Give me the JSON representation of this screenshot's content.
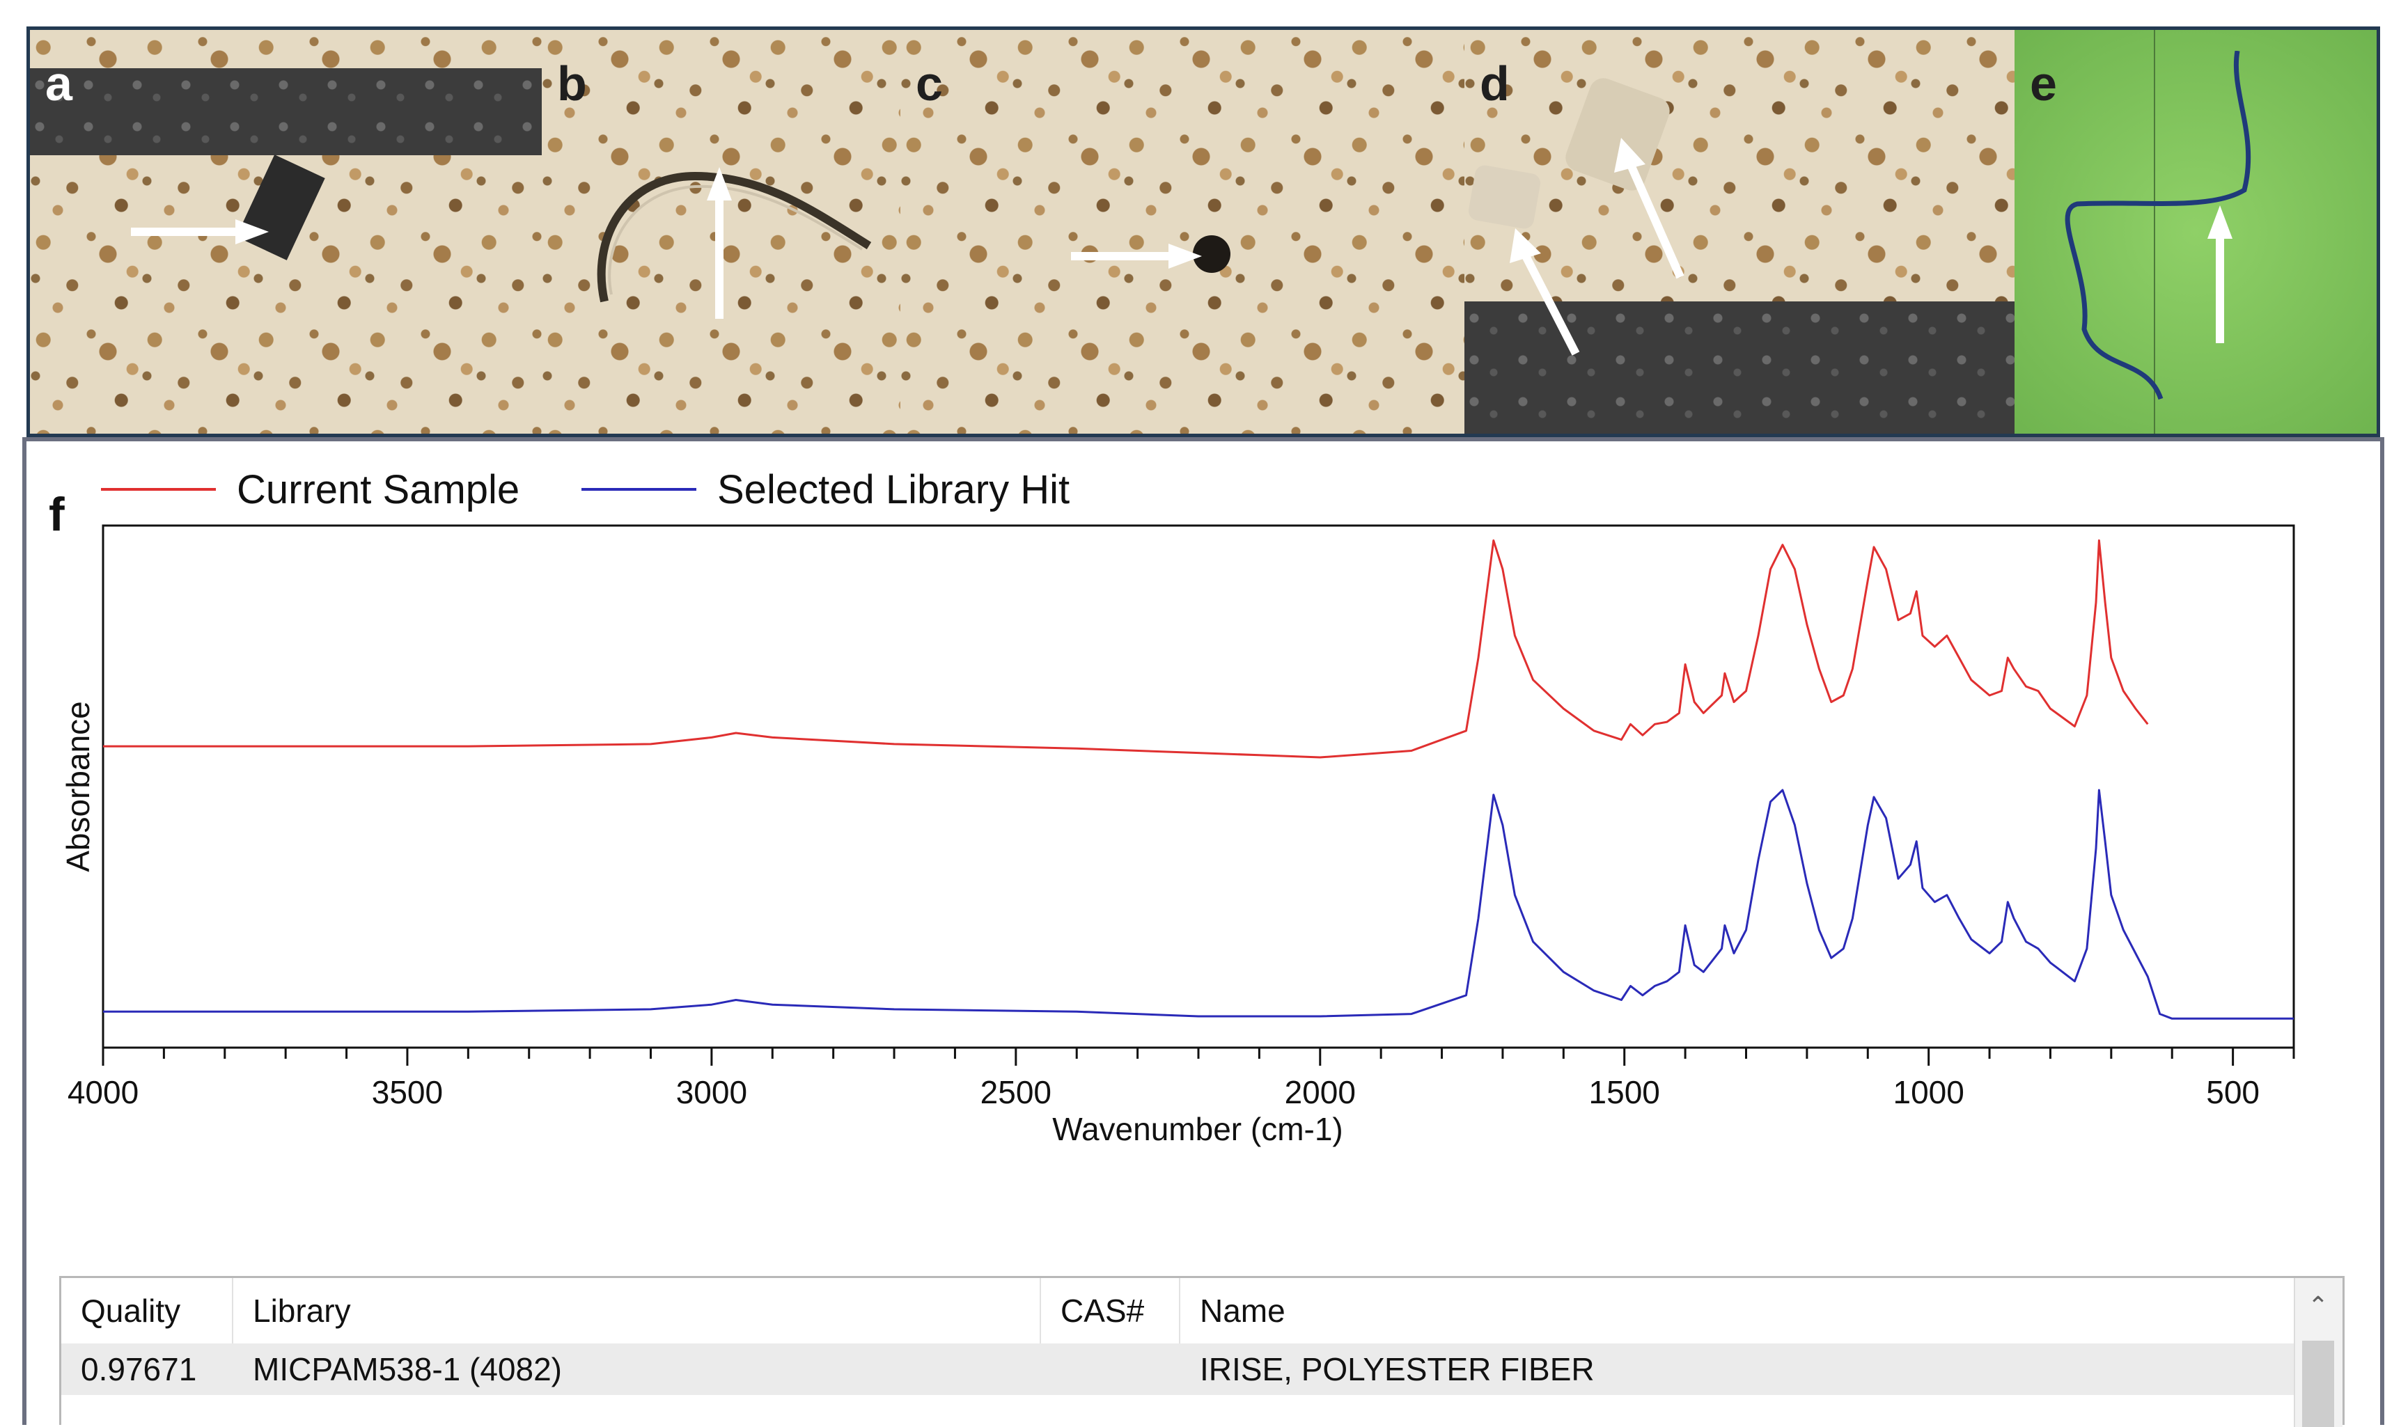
{
  "panels": {
    "a": "a",
    "b": "b",
    "c": "c",
    "d": "d",
    "e": "e",
    "f": "f"
  },
  "legend": {
    "current_sample": "Current Sample",
    "library_hit": "Selected Library Hit"
  },
  "colors": {
    "current_sample": "#e03030",
    "library_hit": "#2a2ab8",
    "frame": "#233a52"
  },
  "chart_data": {
    "type": "line",
    "xlabel": "Wavenumber (cm-1)",
    "ylabel": "Absorbance",
    "xlim": [
      4000,
      400
    ],
    "x_reversed": true,
    "xticks": [
      "4000",
      "3500",
      "3000",
      "2500",
      "2000",
      "1500",
      "1000",
      "500"
    ],
    "grid": false,
    "series": [
      {
        "name": "Current Sample",
        "x": [
          4000,
          3700,
          3400,
          3100,
          3000,
          2960,
          2900,
          2700,
          2400,
          2200,
          2100,
          2000,
          1850,
          1760,
          1740,
          1715,
          1700,
          1680,
          1650,
          1600,
          1550,
          1505,
          1490,
          1470,
          1450,
          1430,
          1410,
          1400,
          1385,
          1370,
          1340,
          1335,
          1320,
          1300,
          1280,
          1260,
          1240,
          1220,
          1200,
          1180,
          1160,
          1140,
          1125,
          1100,
          1090,
          1070,
          1050,
          1030,
          1020,
          1010,
          990,
          970,
          950,
          930,
          900,
          880,
          870,
          860,
          840,
          820,
          800,
          790,
          760,
          740,
          725,
          720,
          710,
          700,
          680,
          660,
          640
        ],
        "y": [
          0.05,
          0.05,
          0.05,
          0.06,
          0.09,
          0.11,
          0.09,
          0.06,
          0.04,
          0.02,
          0.01,
          0.0,
          0.03,
          0.12,
          0.45,
          0.98,
          0.85,
          0.55,
          0.35,
          0.22,
          0.12,
          0.08,
          0.15,
          0.1,
          0.15,
          0.16,
          0.2,
          0.42,
          0.25,
          0.2,
          0.28,
          0.38,
          0.25,
          0.3,
          0.55,
          0.85,
          0.96,
          0.85,
          0.6,
          0.4,
          0.25,
          0.28,
          0.4,
          0.8,
          0.95,
          0.85,
          0.62,
          0.65,
          0.75,
          0.55,
          0.5,
          0.55,
          0.45,
          0.35,
          0.28,
          0.3,
          0.45,
          0.4,
          0.32,
          0.3,
          0.22,
          0.2,
          0.14,
          0.28,
          0.7,
          0.98,
          0.7,
          0.45,
          0.3,
          0.22,
          0.15
        ]
      },
      {
        "name": "Selected Library Hit",
        "x": [
          4000,
          3700,
          3400,
          3100,
          3000,
          2960,
          2900,
          2700,
          2400,
          2200,
          2100,
          2000,
          1850,
          1760,
          1740,
          1715,
          1700,
          1680,
          1650,
          1600,
          1550,
          1505,
          1490,
          1470,
          1450,
          1430,
          1410,
          1400,
          1385,
          1370,
          1340,
          1335,
          1320,
          1300,
          1280,
          1260,
          1240,
          1220,
          1200,
          1180,
          1160,
          1140,
          1125,
          1100,
          1090,
          1070,
          1050,
          1030,
          1020,
          1010,
          990,
          970,
          950,
          930,
          900,
          880,
          870,
          860,
          840,
          820,
          800,
          790,
          760,
          740,
          725,
          720,
          710,
          700,
          680,
          660,
          640,
          620,
          600,
          400
        ],
        "y": [
          0.05,
          0.05,
          0.05,
          0.06,
          0.08,
          0.1,
          0.08,
          0.06,
          0.05,
          0.03,
          0.03,
          0.03,
          0.04,
          0.12,
          0.45,
          0.98,
          0.85,
          0.55,
          0.35,
          0.22,
          0.14,
          0.1,
          0.16,
          0.12,
          0.16,
          0.18,
          0.22,
          0.42,
          0.25,
          0.22,
          0.32,
          0.42,
          0.3,
          0.4,
          0.7,
          0.95,
          1.0,
          0.85,
          0.6,
          0.4,
          0.28,
          0.32,
          0.45,
          0.85,
          0.97,
          0.88,
          0.62,
          0.68,
          0.78,
          0.58,
          0.52,
          0.55,
          0.45,
          0.36,
          0.3,
          0.35,
          0.52,
          0.45,
          0.35,
          0.32,
          0.26,
          0.24,
          0.18,
          0.32,
          0.75,
          1.0,
          0.78,
          0.55,
          0.4,
          0.3,
          0.2,
          0.04,
          0.02,
          0.02
        ]
      }
    ]
  },
  "results": {
    "columns": [
      "Quality",
      "Library",
      "CAS#",
      "Name"
    ],
    "rows": [
      [
        "0.97671",
        "MICPAM538-1 (4082)",
        "",
        "IRISE, POLYESTER FIBER"
      ]
    ]
  }
}
